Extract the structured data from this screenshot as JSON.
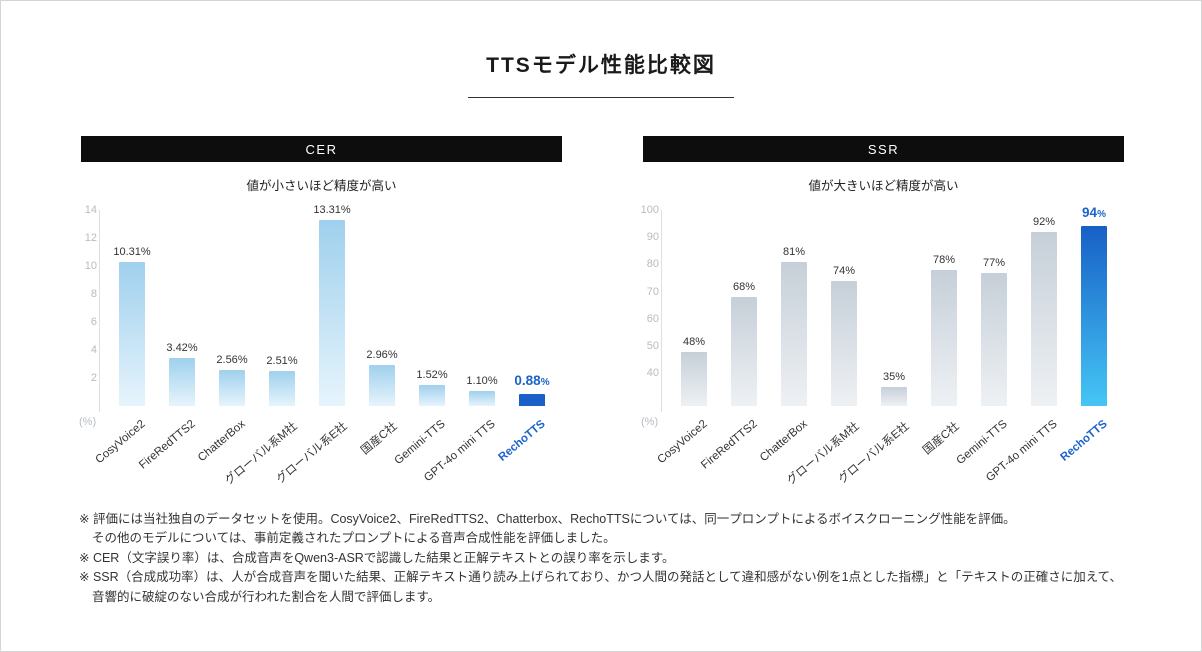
{
  "title": "TTSモデル性能比較図",
  "chart_data": [
    {
      "type": "bar",
      "panel_label": "CER",
      "subtitle": "値が小さいほど精度が高い",
      "unit_label": "(%)",
      "categories": [
        "CosyVoice2",
        "FireRedTTS2",
        "ChatterBox",
        "グローバル系M社",
        "グローバル系E社",
        "国産C社",
        "Gemini-TTS",
        "GPT-4o mini TTS",
        "RechoTTS"
      ],
      "values": [
        10.31,
        3.42,
        2.56,
        2.51,
        13.31,
        2.96,
        1.52,
        1.1,
        0.88
      ],
      "value_labels": [
        "10.31%",
        "3.42%",
        "2.56%",
        "2.51%",
        "13.31%",
        "2.96%",
        "1.52%",
        "1.10%",
        "0.88%"
      ],
      "ymin": 0,
      "ymax": 14,
      "yticks": [
        2,
        4,
        6,
        8,
        10,
        12,
        14
      ],
      "grid": false,
      "legend": "none",
      "bar_color_top": "#9fd0ed",
      "bar_color_bottom": "#e6f4fc",
      "highlight_last": true,
      "highlight_color_top": "#1b5fc9",
      "highlight_color_bottom": "#1b5fc9",
      "highlight_text_color": "#1b63cb"
    },
    {
      "type": "bar",
      "panel_label": "SSR",
      "subtitle": "値が大きいほど精度が高い",
      "unit_label": "(%)",
      "categories": [
        "CosyVoice2",
        "FireRedTTS2",
        "ChatterBox",
        "グローバル系M社",
        "グローバル系E社",
        "国産C社",
        "Gemini-TTS",
        "GPT-4o mini TTS",
        "RechoTTS"
      ],
      "values": [
        48,
        68,
        81,
        74,
        35,
        78,
        77,
        92,
        94
      ],
      "value_labels": [
        "48%",
        "68%",
        "81%",
        "74%",
        "35%",
        "78%",
        "77%",
        "92%",
        "94%"
      ],
      "ymin": 28,
      "ymax": 100,
      "yticks": [
        40,
        50,
        60,
        70,
        80,
        90,
        100
      ],
      "grid": false,
      "legend": "none",
      "bar_color_top": "#c6cfd8",
      "bar_color_bottom": "#eef1f4",
      "highlight_last": true,
      "highlight_color_top": "#1760c6",
      "highlight_color_bottom": "#45c6f5",
      "highlight_text_color": "#1b63cb"
    }
  ],
  "footnotes": [
    {
      "text": "※ 評価には当社独自のデータセットを使用。CosyVoice2、FireRedTTS2、Chatterbox、RechoTTSについては、同一プロンプトによるボイスクローニング性能を評価。",
      "indent": false
    },
    {
      "text": "その他のモデルについては、事前定義されたプロンプトによる音声合成性能を評価しました。",
      "indent": true
    },
    {
      "text": "※ CER（文字誤り率）は、合成音声をQwen3-ASRで認識した結果と正解テキストとの誤り率を示します。",
      "indent": false
    },
    {
      "text": "※ SSR（合成成功率）は、人が合成音声を聞いた結果、正解テキスト通り読み上げられており、かつ人間の発話として違和感がない例を1点とした指標」と「テキストの正確さに加えて、",
      "indent": false
    },
    {
      "text": "音響的に破綻のない合成が行われた割合を人間で評価します。",
      "indent": true
    }
  ]
}
